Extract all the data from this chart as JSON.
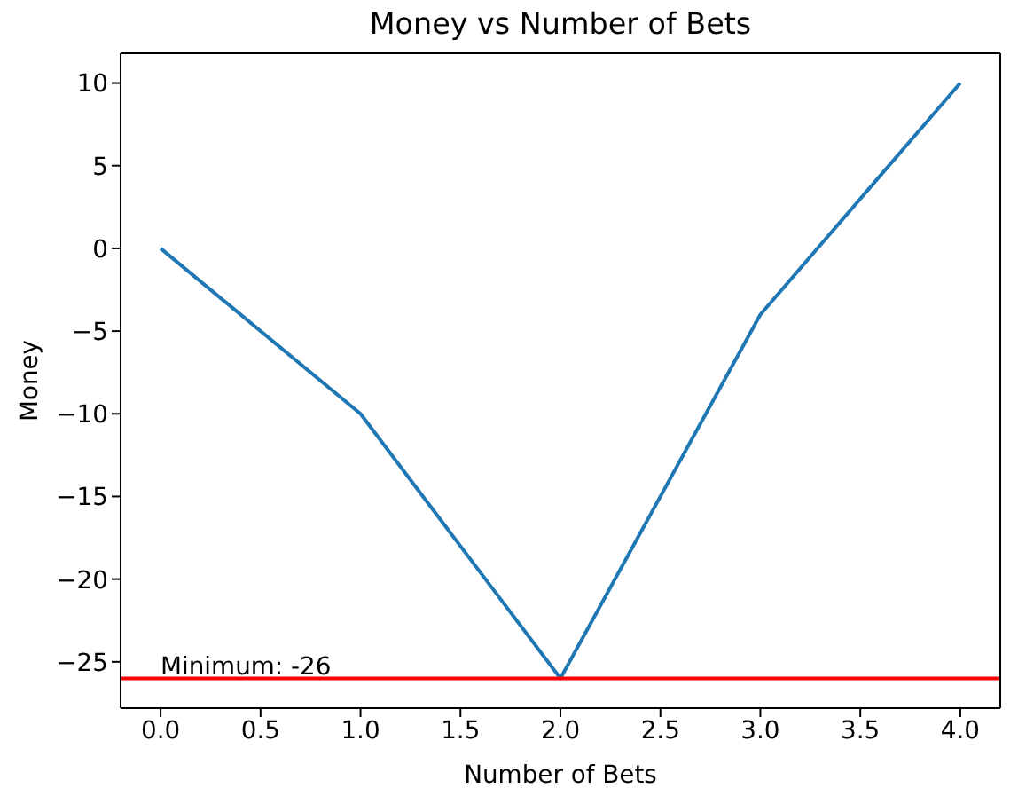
{
  "chart_data": {
    "type": "line",
    "title": "Money vs Number of Bets",
    "xlabel": "Number of Bets",
    "ylabel": "Money",
    "x": [
      0,
      1,
      2,
      3,
      4
    ],
    "series": [
      {
        "color": "#1f77b4",
        "values": [
          0,
          -10,
          -26,
          -4,
          10
        ]
      }
    ],
    "xlim": [
      -0.2,
      4.2
    ],
    "ylim": [
      -27.8,
      11.8
    ],
    "xticks": [
      {
        "value": 0,
        "label": "0.0"
      },
      {
        "value": 0.5,
        "label": "0.5"
      },
      {
        "value": 1,
        "label": "1.0"
      },
      {
        "value": 1.5,
        "label": "1.5"
      },
      {
        "value": 2,
        "label": "2.0"
      },
      {
        "value": 2.5,
        "label": "2.5"
      },
      {
        "value": 3,
        "label": "3.0"
      },
      {
        "value": 3.5,
        "label": "3.5"
      },
      {
        "value": 4,
        "label": "4.0"
      }
    ],
    "yticks": [
      {
        "value": -25,
        "label": "−25"
      },
      {
        "value": -20,
        "label": "−20"
      },
      {
        "value": -15,
        "label": "−15"
      },
      {
        "value": -10,
        "label": "−10"
      },
      {
        "value": -5,
        "label": "−5"
      },
      0,
      5,
      10
    ],
    "ref_lines": [
      {
        "axis": "y",
        "value": -26,
        "color": "#ff0000"
      }
    ],
    "annotations": [
      {
        "text": "Minimum: -26",
        "x": 0,
        "y": -26
      }
    ],
    "marker": "none",
    "line_style": "solid"
  }
}
